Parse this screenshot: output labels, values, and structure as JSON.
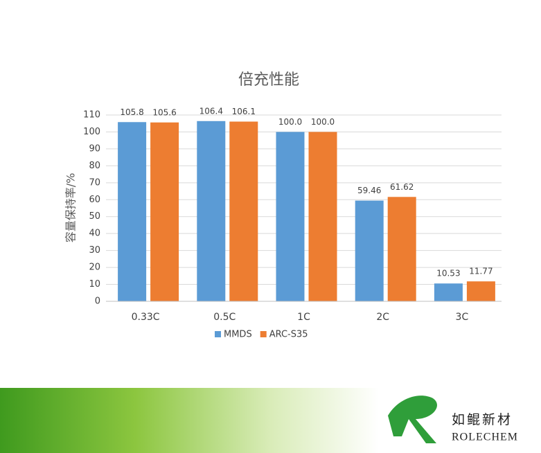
{
  "chart_data": {
    "type": "bar",
    "title": "倍充性能",
    "y_label": "容量保持率/%",
    "categories": [
      "0.33C",
      "0.5C",
      "1C",
      "2C",
      "3C"
    ],
    "series": [
      {
        "name": "MMDS",
        "color": "#5b9bd5",
        "values": [
          105.8,
          106.4,
          100.0,
          59.46,
          10.53
        ],
        "value_labels": [
          "105.8",
          "106.4",
          "100.0",
          "59.46",
          "10.53"
        ]
      },
      {
        "name": "ARC-S35",
        "color": "#ed7d31",
        "values": [
          105.6,
          106.1,
          100.0,
          61.62,
          11.77
        ],
        "value_labels": [
          "105.6",
          "106.1",
          "100.0",
          "61.62",
          "11.77"
        ]
      }
    ],
    "ylim": [
      0,
      110
    ],
    "yticks": [
      0,
      10,
      20,
      30,
      40,
      50,
      60,
      70,
      80,
      90,
      100,
      110
    ],
    "grid": true,
    "legend": "bottom"
  },
  "logo": {
    "name": "如鲲新材",
    "brand": "ROLECHEM"
  }
}
